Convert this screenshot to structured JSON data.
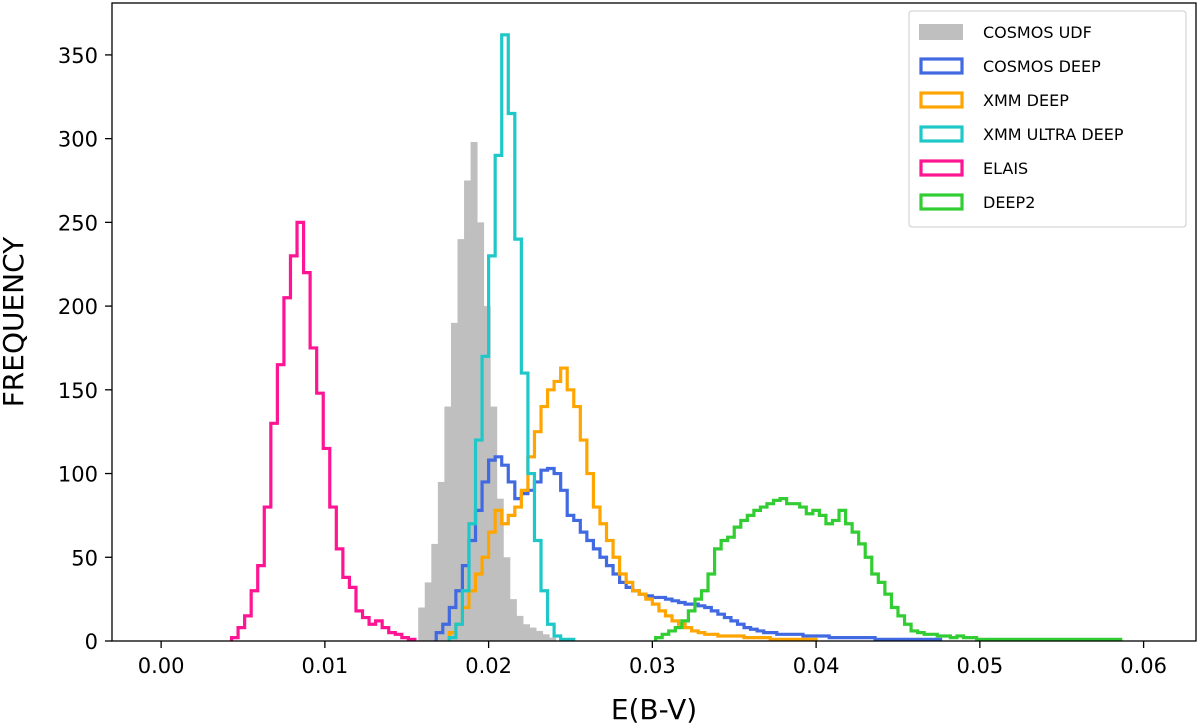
{
  "chart_data": {
    "type": "histogram",
    "title": "",
    "xlabel": "E(B-V)",
    "ylabel": "FREQUENCY",
    "xlim": [
      -0.003,
      0.0632
    ],
    "ylim": [
      0,
      381
    ],
    "xticks": [
      0.0,
      0.01,
      0.02,
      0.03,
      0.04,
      0.05,
      0.06
    ],
    "xtick_labels": [
      "0.00",
      "0.01",
      "0.02",
      "0.03",
      "0.04",
      "0.05",
      "0.06"
    ],
    "yticks": [
      0,
      50,
      100,
      150,
      200,
      250,
      300,
      350
    ],
    "ytick_labels": [
      "0",
      "50",
      "100",
      "150",
      "200",
      "250",
      "300",
      "350"
    ],
    "grid": false,
    "legend_position": "top-right",
    "series": [
      {
        "name": "COSMOS UDF",
        "style": "filled",
        "color": "#bfbfbf",
        "bin_edges": [
          0.0157,
          0.0161,
          0.0165,
          0.0169,
          0.0173,
          0.0177,
          0.0181,
          0.0185,
          0.0189,
          0.0193,
          0.0197,
          0.0201,
          0.0205,
          0.0209,
          0.0213,
          0.0217,
          0.0221,
          0.0225,
          0.0229,
          0.0233,
          0.0237,
          0.0241
        ],
        "counts": [
          20,
          35,
          58,
          95,
          140,
          190,
          240,
          275,
          298,
          250,
          200,
          140,
          85,
          50,
          25,
          15,
          10,
          8,
          6,
          4,
          2
        ]
      },
      {
        "name": "COSMOS DEEP",
        "style": "step",
        "color": "#4169e1",
        "bin_edges": [
          0.0168,
          0.0172,
          0.0176,
          0.018,
          0.0184,
          0.0188,
          0.0192,
          0.0196,
          0.02,
          0.0204,
          0.0208,
          0.0212,
          0.0216,
          0.022,
          0.0224,
          0.0228,
          0.0232,
          0.0236,
          0.024,
          0.0244,
          0.0248,
          0.0252,
          0.0256,
          0.026,
          0.0264,
          0.0268,
          0.0272,
          0.0276,
          0.028,
          0.0284,
          0.0288,
          0.0292,
          0.0296,
          0.03,
          0.0304,
          0.0308,
          0.0312,
          0.0316,
          0.032,
          0.0324,
          0.0328,
          0.0332,
          0.0336,
          0.034,
          0.0344,
          0.0348,
          0.0352,
          0.0356,
          0.036,
          0.0364,
          0.0368,
          0.0372,
          0.0376,
          0.038,
          0.0384,
          0.0388,
          0.0392,
          0.0396,
          0.04,
          0.0404,
          0.0408,
          0.0412,
          0.0416,
          0.042,
          0.0424,
          0.0428,
          0.0432,
          0.0436,
          0.044,
          0.0444,
          0.0448,
          0.0452,
          0.0456,
          0.046,
          0.0464,
          0.0468,
          0.0472,
          0.0476
        ],
        "counts": [
          5,
          10,
          20,
          30,
          45,
          60,
          78,
          95,
          108,
          110,
          105,
          95,
          85,
          88,
          90,
          95,
          102,
          103,
          100,
          90,
          75,
          72,
          65,
          60,
          55,
          50,
          45,
          40,
          35,
          32,
          30,
          28,
          27,
          26,
          26,
          25,
          24,
          23,
          22,
          22,
          21,
          20,
          18,
          16,
          14,
          12,
          10,
          8,
          7,
          6,
          5,
          5,
          4,
          4,
          4,
          4,
          3,
          3,
          3,
          3,
          2,
          2,
          2,
          2,
          2,
          2,
          2,
          1,
          1,
          1,
          1,
          1,
          1,
          1,
          1,
          1,
          1
        ]
      },
      {
        "name": "XMM DEEP",
        "style": "step",
        "color": "#ffa500",
        "bin_edges": [
          0.0176,
          0.018,
          0.0184,
          0.0188,
          0.0192,
          0.0196,
          0.02,
          0.0204,
          0.0208,
          0.0212,
          0.0216,
          0.022,
          0.0224,
          0.0228,
          0.0232,
          0.0236,
          0.024,
          0.0244,
          0.0248,
          0.0252,
          0.0256,
          0.026,
          0.0264,
          0.0268,
          0.0272,
          0.0276,
          0.028,
          0.0284,
          0.0288,
          0.0292,
          0.0296,
          0.03,
          0.0304,
          0.0308,
          0.0312,
          0.0316,
          0.032,
          0.0324,
          0.0328,
          0.0332,
          0.0336,
          0.034,
          0.0344,
          0.0348,
          0.0352,
          0.0356,
          0.036,
          0.0364,
          0.0368,
          0.0372,
          0.0376,
          0.038,
          0.0384,
          0.0388,
          0.0392,
          0.0396,
          0.04
        ],
        "counts": [
          5,
          10,
          20,
          30,
          40,
          50,
          65,
          78,
          70,
          75,
          80,
          90,
          110,
          125,
          140,
          150,
          155,
          163,
          150,
          140,
          120,
          100,
          80,
          70,
          60,
          50,
          40,
          35,
          30,
          28,
          25,
          22,
          18,
          15,
          12,
          10,
          8,
          6,
          5,
          4,
          4,
          3,
          3,
          3,
          3,
          2,
          2,
          2,
          2,
          1,
          1,
          1,
          1,
          1,
          1,
          1
        ]
      },
      {
        "name": "XMM ULTRA DEEP",
        "style": "step",
        "color": "#1ec8c8",
        "bin_edges": [
          0.0176,
          0.018,
          0.0184,
          0.0188,
          0.0192,
          0.0196,
          0.02,
          0.0204,
          0.0208,
          0.0212,
          0.0216,
          0.022,
          0.0224,
          0.0228,
          0.0232,
          0.0236,
          0.024,
          0.0244,
          0.0248,
          0.0252
        ],
        "counts": [
          2,
          10,
          30,
          70,
          120,
          170,
          230,
          290,
          362,
          315,
          240,
          160,
          100,
          60,
          30,
          10,
          3,
          1,
          1
        ]
      },
      {
        "name": "ELAIS",
        "style": "step",
        "color": "#ff1493",
        "bin_edges": [
          0.0043,
          0.0047,
          0.0051,
          0.0055,
          0.0059,
          0.0063,
          0.0067,
          0.0071,
          0.0075,
          0.0079,
          0.0083,
          0.0087,
          0.0091,
          0.0095,
          0.0099,
          0.0103,
          0.0107,
          0.0111,
          0.0115,
          0.0119,
          0.0123,
          0.0127,
          0.0131,
          0.0135,
          0.0139,
          0.0143,
          0.0147,
          0.0151,
          0.0155
        ],
        "counts": [
          2,
          8,
          15,
          30,
          45,
          80,
          130,
          165,
          205,
          230,
          250,
          220,
          175,
          148,
          115,
          80,
          55,
          38,
          32,
          18,
          14,
          10,
          12,
          8,
          5,
          4,
          2,
          1
        ]
      },
      {
        "name": "DEEP2",
        "style": "step",
        "color": "#32cd32",
        "bin_edges": [
          0.0302,
          0.0306,
          0.031,
          0.0314,
          0.0318,
          0.0322,
          0.0326,
          0.033,
          0.0334,
          0.0338,
          0.0342,
          0.0346,
          0.035,
          0.0354,
          0.0358,
          0.0362,
          0.0366,
          0.037,
          0.0374,
          0.0378,
          0.0382,
          0.0386,
          0.039,
          0.0394,
          0.0398,
          0.0402,
          0.0406,
          0.041,
          0.0414,
          0.0418,
          0.0422,
          0.0426,
          0.043,
          0.0434,
          0.0438,
          0.0442,
          0.0446,
          0.045,
          0.0454,
          0.0458,
          0.0462,
          0.0466,
          0.047,
          0.0474,
          0.0478,
          0.0482,
          0.0486,
          0.049,
          0.0494,
          0.0498,
          0.0502,
          0.0506,
          0.051,
          0.0514,
          0.0518,
          0.0522,
          0.0526,
          0.053,
          0.0534,
          0.0538,
          0.0542,
          0.0546,
          0.055,
          0.0554,
          0.0558,
          0.0562,
          0.0566,
          0.057,
          0.0574,
          0.0578,
          0.0582,
          0.0586
        ],
        "counts": [
          2,
          4,
          6,
          8,
          12,
          18,
          25,
          30,
          40,
          55,
          60,
          62,
          68,
          72,
          75,
          78,
          80,
          82,
          84,
          85,
          82,
          82,
          80,
          76,
          78,
          75,
          70,
          72,
          78,
          70,
          65,
          58,
          50,
          40,
          35,
          28,
          20,
          15,
          10,
          6,
          5,
          4,
          4,
          3,
          3,
          2,
          3,
          2,
          2,
          1,
          1,
          1,
          1,
          1,
          1,
          1,
          1,
          1,
          1,
          1,
          1,
          1,
          1,
          1,
          1,
          1,
          1,
          1,
          1,
          1,
          1
        ]
      }
    ]
  }
}
